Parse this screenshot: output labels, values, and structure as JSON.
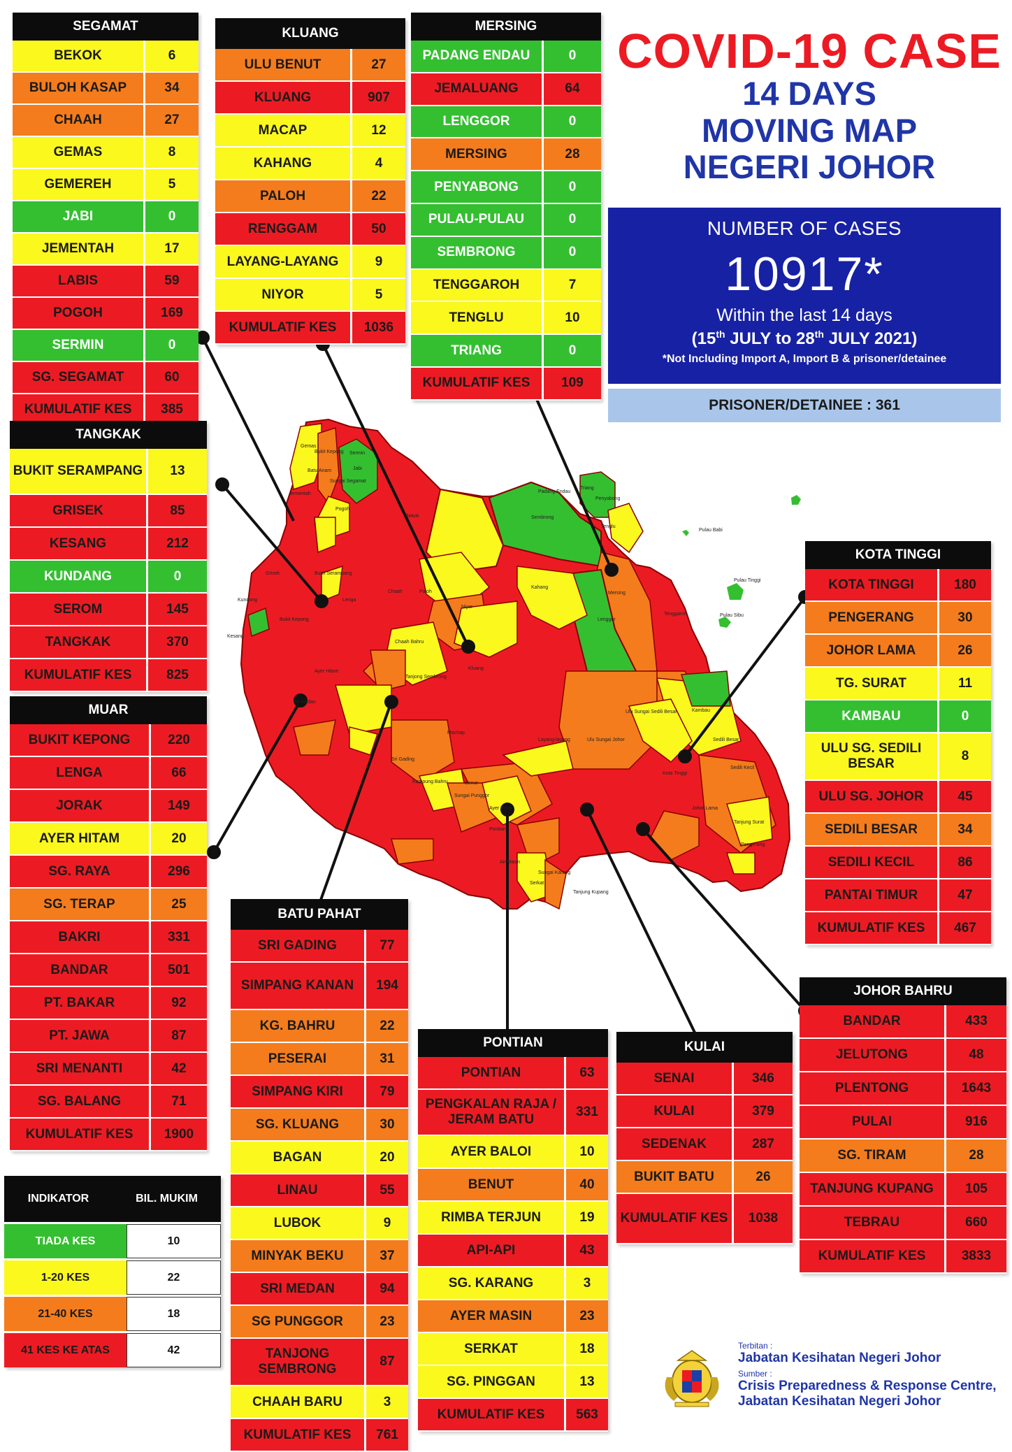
{
  "title": {
    "main": "COVID-19 CASE",
    "line2": "14 DAYS",
    "line3": "MOVING MAP",
    "line4": "NEGERI JOHOR"
  },
  "summary": {
    "label": "NUMBER OF CASES",
    "number": "10917*",
    "within": "Within the last 14 days",
    "range_start_day": "15",
    "range_start_month": "JULY",
    "range_end_day": "28",
    "range_end_month": "JULY 2021",
    "ordinal": "th",
    "note": "*Not Including Import A, Import B & prisoner/detainee",
    "prisoner": "PRISONER/DETAINEE : 361"
  },
  "colors": {
    "green": "#34bf31",
    "yellow": "#fbf81d",
    "orange": "#f47c1c",
    "red": "#ec1b23",
    "blue": "#1721a3"
  },
  "districts": {
    "segamat": {
      "name": "SEGAMAT",
      "rows": [
        {
          "n": "BEKOK",
          "v": "6",
          "c": "yellow"
        },
        {
          "n": "BULOH KASAP",
          "v": "34",
          "c": "orange"
        },
        {
          "n": "CHAAH",
          "v": "27",
          "c": "orange"
        },
        {
          "n": "GEMAS",
          "v": "8",
          "c": "yellow"
        },
        {
          "n": "GEMEREH",
          "v": "5",
          "c": "yellow"
        },
        {
          "n": "JABI",
          "v": "0",
          "c": "green"
        },
        {
          "n": "JEMENTAH",
          "v": "17",
          "c": "yellow"
        },
        {
          "n": "LABIS",
          "v": "59",
          "c": "red"
        },
        {
          "n": "POGOH",
          "v": "169",
          "c": "red"
        },
        {
          "n": "SERMIN",
          "v": "0",
          "c": "green"
        },
        {
          "n": "SG. SEGAMAT",
          "v": "60",
          "c": "red"
        },
        {
          "n": "KUMULATIF KES",
          "v": "385",
          "c": "red"
        }
      ]
    },
    "kluang": {
      "name": "KLUANG",
      "rows": [
        {
          "n": "ULU BENUT",
          "v": "27",
          "c": "orange"
        },
        {
          "n": "KLUANG",
          "v": "907",
          "c": "red"
        },
        {
          "n": "MACAP",
          "v": "12",
          "c": "yellow"
        },
        {
          "n": "KAHANG",
          "v": "4",
          "c": "yellow"
        },
        {
          "n": "PALOH",
          "v": "22",
          "c": "orange"
        },
        {
          "n": "RENGGAM",
          "v": "50",
          "c": "red"
        },
        {
          "n": "LAYANG-LAYANG",
          "v": "9",
          "c": "yellow"
        },
        {
          "n": "NIYOR",
          "v": "5",
          "c": "yellow"
        },
        {
          "n": "KUMULATIF KES",
          "v": "1036",
          "c": "red"
        }
      ]
    },
    "mersing": {
      "name": "MERSING",
      "rows": [
        {
          "n": "PADANG ENDAU",
          "v": "0",
          "c": "green"
        },
        {
          "n": "JEMALUANG",
          "v": "64",
          "c": "red"
        },
        {
          "n": "LENGGOR",
          "v": "0",
          "c": "green"
        },
        {
          "n": "MERSING",
          "v": "28",
          "c": "orange"
        },
        {
          "n": "PENYABONG",
          "v": "0",
          "c": "green"
        },
        {
          "n": "PULAU-PULAU",
          "v": "0",
          "c": "green"
        },
        {
          "n": "SEMBRONG",
          "v": "0",
          "c": "green"
        },
        {
          "n": "TENGGAROH",
          "v": "7",
          "c": "yellow"
        },
        {
          "n": "TENGLU",
          "v": "10",
          "c": "yellow"
        },
        {
          "n": "TRIANG",
          "v": "0",
          "c": "green"
        },
        {
          "n": "KUMULATIF KES",
          "v": "109",
          "c": "red"
        }
      ]
    },
    "tangkak": {
      "name": "TANGKAK",
      "rows": [
        {
          "n": "BUKIT SERAMPANG",
          "v": "13",
          "c": "yellow"
        },
        {
          "n": "GRISEK",
          "v": "85",
          "c": "red"
        },
        {
          "n": "KESANG",
          "v": "212",
          "c": "red"
        },
        {
          "n": "KUNDANG",
          "v": "0",
          "c": "green"
        },
        {
          "n": "SEROM",
          "v": "145",
          "c": "red"
        },
        {
          "n": "TANGKAK",
          "v": "370",
          "c": "red"
        },
        {
          "n": "KUMULATIF KES",
          "v": "825",
          "c": "red"
        }
      ]
    },
    "muar": {
      "name": "MUAR",
      "rows": [
        {
          "n": "BUKIT KEPONG",
          "v": "220",
          "c": "red"
        },
        {
          "n": "LENGA",
          "v": "66",
          "c": "red"
        },
        {
          "n": "JORAK",
          "v": "149",
          "c": "red"
        },
        {
          "n": "AYER HITAM",
          "v": "20",
          "c": "yellow"
        },
        {
          "n": "SG. RAYA",
          "v": "296",
          "c": "red"
        },
        {
          "n": "SG. TERAP",
          "v": "25",
          "c": "orange"
        },
        {
          "n": "BAKRI",
          "v": "331",
          "c": "red"
        },
        {
          "n": "BANDAR",
          "v": "501",
          "c": "red"
        },
        {
          "n": "PT. BAKAR",
          "v": "92",
          "c": "red"
        },
        {
          "n": "PT. JAWA",
          "v": "87",
          "c": "red"
        },
        {
          "n": "SRI MENANTI",
          "v": "42",
          "c": "red"
        },
        {
          "n": "SG. BALANG",
          "v": "71",
          "c": "red"
        },
        {
          "n": "KUMULATIF KES",
          "v": "1900",
          "c": "red"
        }
      ]
    },
    "batu_pahat": {
      "name": "BATU PAHAT",
      "rows": [
        {
          "n": "SRI GADING",
          "v": "77",
          "c": "red"
        },
        {
          "n": "SIMPANG KANAN",
          "v": "194",
          "c": "red"
        },
        {
          "n": "KG. BAHRU",
          "v": "22",
          "c": "orange"
        },
        {
          "n": "PESERAI",
          "v": "31",
          "c": "orange"
        },
        {
          "n": "SIMPANG KIRI",
          "v": "79",
          "c": "red"
        },
        {
          "n": "SG. KLUANG",
          "v": "30",
          "c": "orange"
        },
        {
          "n": "BAGAN",
          "v": "20",
          "c": "yellow"
        },
        {
          "n": "LINAU",
          "v": "55",
          "c": "red"
        },
        {
          "n": "LUBOK",
          "v": "9",
          "c": "yellow"
        },
        {
          "n": "MINYAK BEKU",
          "v": "37",
          "c": "orange"
        },
        {
          "n": "SRI MEDAN",
          "v": "94",
          "c": "red"
        },
        {
          "n": "SG PUNGGOR",
          "v": "23",
          "c": "orange"
        },
        {
          "n": "TANJONG SEMBRONG",
          "v": "87",
          "c": "red"
        },
        {
          "n": "CHAAH BARU",
          "v": "3",
          "c": "yellow"
        },
        {
          "n": "KUMULATIF KES",
          "v": "761",
          "c": "red"
        }
      ]
    },
    "pontian": {
      "name": "PONTIAN",
      "rows": [
        {
          "n": "PONTIAN",
          "v": "63",
          "c": "red"
        },
        {
          "n": "PENGKALAN RAJA / JERAM BATU",
          "v": "331",
          "c": "red"
        },
        {
          "n": "AYER BALOI",
          "v": "10",
          "c": "yellow"
        },
        {
          "n": "BENUT",
          "v": "40",
          "c": "orange"
        },
        {
          "n": "RIMBA TERJUN",
          "v": "19",
          "c": "yellow"
        },
        {
          "n": "API-API",
          "v": "43",
          "c": "red"
        },
        {
          "n": "SG. KARANG",
          "v": "3",
          "c": "yellow"
        },
        {
          "n": "AYER MASIN",
          "v": "23",
          "c": "orange"
        },
        {
          "n": "SERKAT",
          "v": "18",
          "c": "yellow"
        },
        {
          "n": "SG. PINGGAN",
          "v": "13",
          "c": "yellow"
        },
        {
          "n": "KUMULATIF KES",
          "v": "563",
          "c": "red"
        }
      ]
    },
    "kulai": {
      "name": "KULAI",
      "rows": [
        {
          "n": "SENAI",
          "v": "346",
          "c": "red"
        },
        {
          "n": "KULAI",
          "v": "379",
          "c": "red"
        },
        {
          "n": "SEDENAK",
          "v": "287",
          "c": "red"
        },
        {
          "n": "BUKIT BATU",
          "v": "26",
          "c": "orange"
        },
        {
          "n": "KUMULATIF KES",
          "v": "1038",
          "c": "red"
        }
      ]
    },
    "kota_tinggi": {
      "name": "KOTA TINGGI",
      "rows": [
        {
          "n": "KOTA TINGGI",
          "v": "180",
          "c": "red"
        },
        {
          "n": "PENGERANG",
          "v": "30",
          "c": "orange"
        },
        {
          "n": "JOHOR LAMA",
          "v": "26",
          "c": "orange"
        },
        {
          "n": "TG. SURAT",
          "v": "11",
          "c": "yellow"
        },
        {
          "n": "KAMBAU",
          "v": "0",
          "c": "green"
        },
        {
          "n": "ULU SG. SEDILI BESAR",
          "v": "8",
          "c": "yellow"
        },
        {
          "n": "ULU  SG. JOHOR",
          "v": "45",
          "c": "red"
        },
        {
          "n": "SEDILI BESAR",
          "v": "34",
          "c": "orange"
        },
        {
          "n": "SEDILI KECIL",
          "v": "86",
          "c": "red"
        },
        {
          "n": "PANTAI TIMUR",
          "v": "47",
          "c": "red"
        },
        {
          "n": "KUMULATIF KES",
          "v": "467",
          "c": "red"
        }
      ]
    },
    "johor_bahru": {
      "name": "JOHOR BAHRU",
      "rows": [
        {
          "n": "BANDAR",
          "v": "433",
          "c": "red"
        },
        {
          "n": "JELUTONG",
          "v": "48",
          "c": "red"
        },
        {
          "n": "PLENTONG",
          "v": "1643",
          "c": "red"
        },
        {
          "n": "PULAI",
          "v": "916",
          "c": "red"
        },
        {
          "n": "SG. TIRAM",
          "v": "28",
          "c": "orange"
        },
        {
          "n": "TANJUNG KUPANG",
          "v": "105",
          "c": "red"
        },
        {
          "n": "TEBRAU",
          "v": "660",
          "c": "red"
        },
        {
          "n": "KUMULATIF KES",
          "v": "3833",
          "c": "red"
        }
      ]
    }
  },
  "legend": {
    "header_left": "INDIKATOR",
    "header_right": "BIL. MUKIM",
    "rows": [
      {
        "label": "TIADA KES",
        "count": "10",
        "c": "green"
      },
      {
        "label": "1-20 KES",
        "count": "22",
        "c": "yellow"
      },
      {
        "label": "21-40 KES",
        "count": "18",
        "c": "orange"
      },
      {
        "label": "41 KES KE ATAS",
        "count": "42",
        "c": "red"
      }
    ]
  },
  "publisher": {
    "terbitan_label": "Terbitan :",
    "terbitan": "Jabatan Kesihatan Negeri Johor",
    "sumber_label": "Sumber :",
    "sumber_line1": "Crisis Preparedness & Response Centre,",
    "sumber_line2": "Jabatan Kesihatan Negeri Johor"
  },
  "map_labels": [
    "Gemas",
    "Bukit Kepong",
    "Sermin",
    "Jabi",
    "Batu Anam",
    "Jementah",
    "Sungai Segamat",
    "Pogoh",
    "Bekok",
    "Padang Endau",
    "Triang",
    "Penyabong",
    "Sembrong",
    "Tenglu",
    "Pulau Babi",
    "Grisek",
    "Bukit Serampang",
    "Chaah",
    "Paloh",
    "Kahang",
    "Mersing",
    "Pulau Tinggi",
    "Pulau Sibu",
    "Kundang",
    "Lenga",
    "Niyor",
    "Lenggor",
    "Tenggaroh",
    "Kesang",
    "Bukit Kepong",
    "Chaah Bahru",
    "Kluang",
    "Ulu Sungai Sedili Besar",
    "Kambau",
    "Ayer Hitam",
    "Sri Medan",
    "Tanjong Sembrong",
    "Ulu Sungai Johor",
    "Sedili Besar",
    "Machap",
    "Layang-layang",
    "Sri Gading",
    "Kampung Bahru",
    "Benut",
    "Sungai Punggor",
    "Ayer Baloi",
    "Kota Tinggi",
    "Sedili Kecil",
    "Johor Lama",
    "Tanjung Surat",
    "Pontian",
    "Air Masin",
    "Serkat",
    "Sungai Karang",
    "Pengerang",
    "Tanjung Kupang"
  ]
}
